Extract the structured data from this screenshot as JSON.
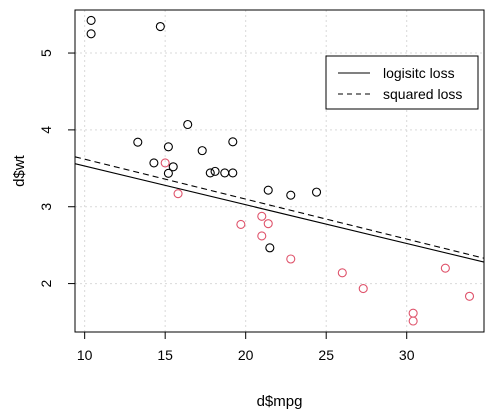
{
  "chart_data": {
    "type": "scatter",
    "xlabel": "d$mpg",
    "ylabel": "d$wt",
    "xlim": [
      9.4,
      34.8
    ],
    "ylim": [
      1.37,
      5.56
    ],
    "x_ticks": [
      10,
      15,
      20,
      25,
      30
    ],
    "y_ticks": [
      2,
      3,
      4,
      5
    ],
    "grid": true,
    "legend_position": "top-right",
    "colors": {
      "class_black": "#000000",
      "class_red": "#DF536B",
      "grid": "#d9d9d9"
    },
    "series": [
      {
        "color": "#000000",
        "marker": "open-circle",
        "points": [
          [
            10.4,
            5.424
          ],
          [
            10.4,
            5.25
          ],
          [
            14.7,
            5.345
          ],
          [
            13.3,
            3.84
          ],
          [
            14.3,
            3.57
          ],
          [
            15.2,
            3.78
          ],
          [
            15.2,
            3.435
          ],
          [
            15.5,
            3.52
          ],
          [
            16.4,
            4.07
          ],
          [
            17.3,
            3.73
          ],
          [
            17.8,
            3.44
          ],
          [
            18.1,
            3.46
          ],
          [
            18.7,
            3.44
          ],
          [
            19.2,
            3.44
          ],
          [
            19.2,
            3.845
          ],
          [
            21.4,
            3.215
          ],
          [
            21.5,
            2.465
          ],
          [
            22.8,
            3.15
          ],
          [
            24.4,
            3.19
          ]
        ]
      },
      {
        "color": "#DF536B",
        "marker": "open-circle",
        "points": [
          [
            15.0,
            3.57
          ],
          [
            15.8,
            3.17
          ],
          [
            19.7,
            2.77
          ],
          [
            21.0,
            2.62
          ],
          [
            21.0,
            2.875
          ],
          [
            21.4,
            2.78
          ],
          [
            22.8,
            2.32
          ],
          [
            26.0,
            2.14
          ],
          [
            27.3,
            1.935
          ],
          [
            30.4,
            1.615
          ],
          [
            30.4,
            1.513
          ],
          [
            32.4,
            2.2
          ],
          [
            33.9,
            1.835
          ]
        ]
      }
    ],
    "lines": [
      {
        "name": "logisitc loss",
        "style": "solid",
        "x": [
          9.4,
          34.8
        ],
        "y": [
          3.56,
          2.28
        ]
      },
      {
        "name": "squared loss",
        "style": "dashed",
        "x": [
          9.4,
          34.8
        ],
        "y": [
          3.65,
          2.33
        ]
      }
    ]
  }
}
